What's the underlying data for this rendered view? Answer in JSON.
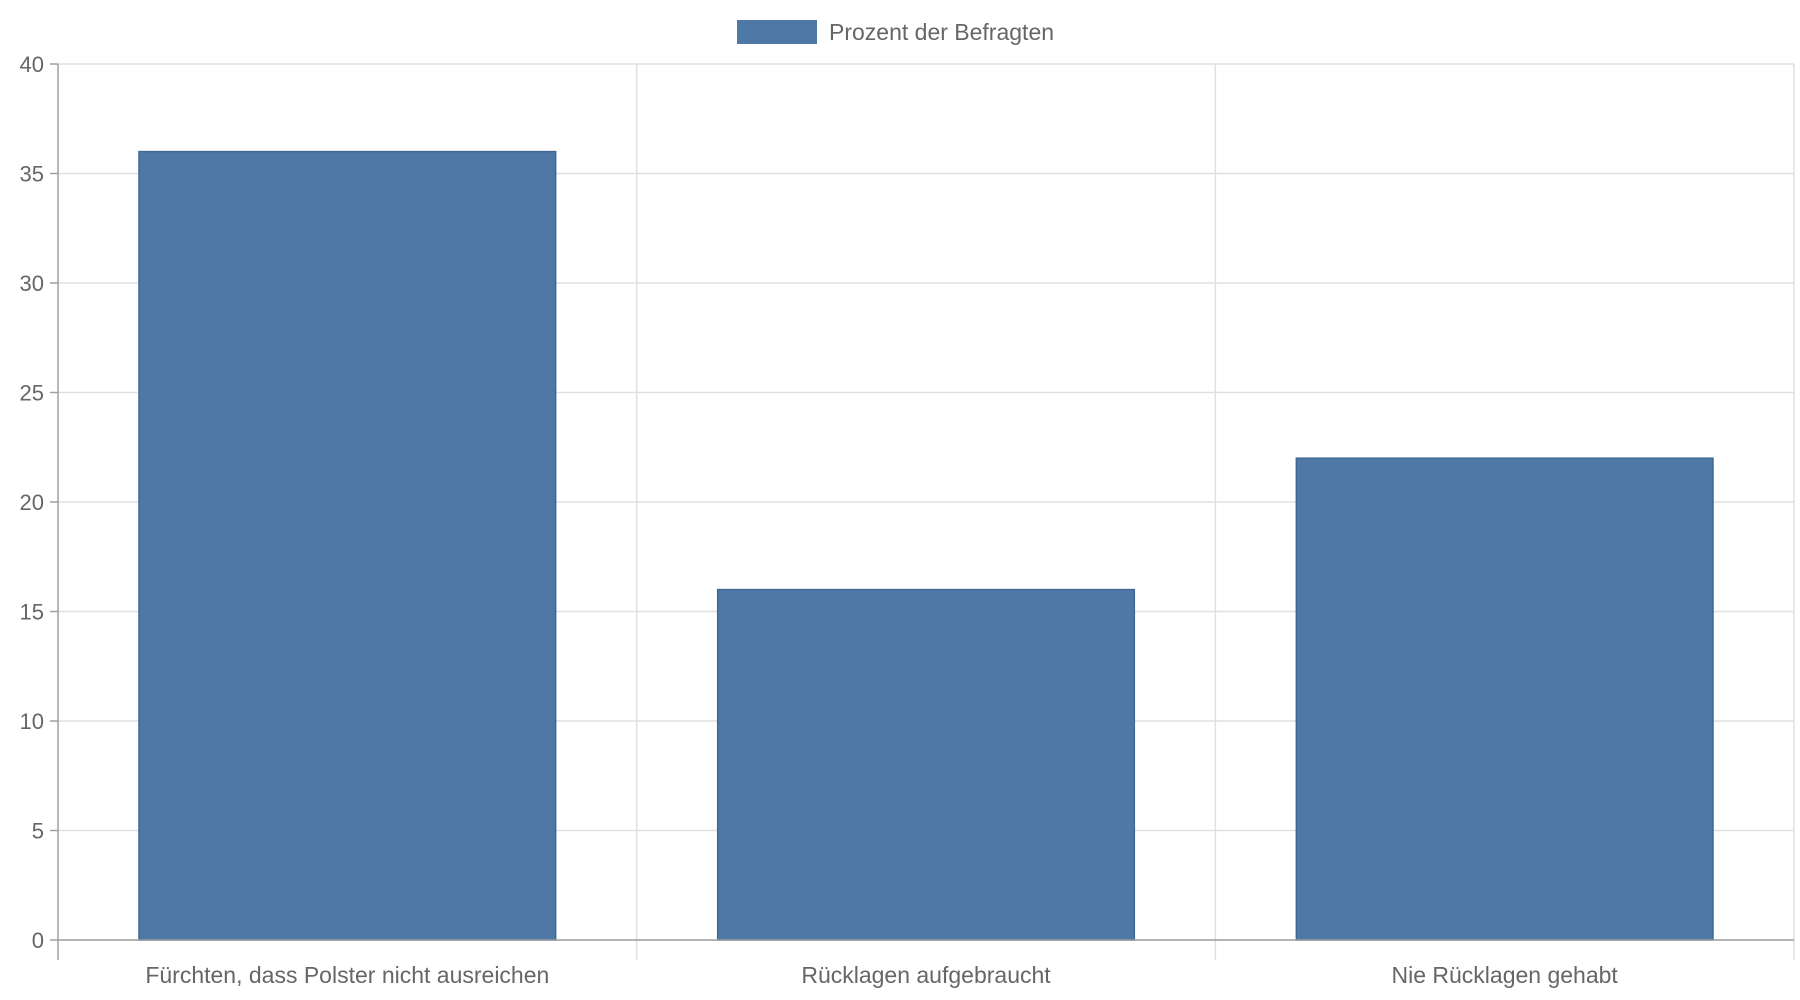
{
  "chart_data": {
    "type": "bar",
    "categories": [
      "Fürchten, dass Polster nicht ausreichen",
      "Rücklagen aufgebraucht",
      "Nie Rücklagen gehabt"
    ],
    "series": [
      {
        "name": "Prozent der Befragten",
        "values": [
          36,
          16,
          22
        ],
        "color": "#4e79a7"
      }
    ],
    "ylim": [
      0,
      40
    ],
    "yticks": [
      0,
      5,
      10,
      15,
      20,
      25,
      30,
      35,
      40
    ],
    "grid": true,
    "legend_position": "top-center",
    "colors": {
      "bar": "#4e79a7",
      "bar_border": "#3f6791",
      "grid": "#e0e0e0",
      "axis": "#a0a0a0",
      "text": "#666666"
    }
  }
}
